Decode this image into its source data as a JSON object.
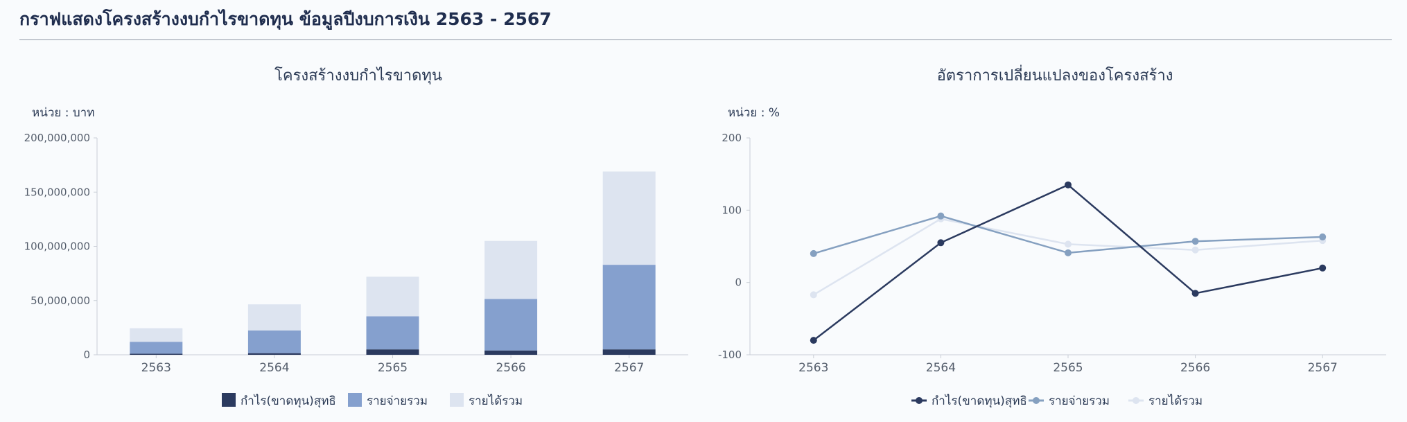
{
  "page": {
    "title": "กราฟแสดงโครงสร้างงบกำไรขาดทุน ข้อมูลปีงบการเงิน 2563 - 2567"
  },
  "chart_data": [
    {
      "type": "bar",
      "stacked": true,
      "title": "โครงสร้างงบกำไรขาดทุน",
      "unit_label": "หน่วย : บาท",
      "categories": [
        "2563",
        "2564",
        "2565",
        "2566",
        "2567"
      ],
      "series": [
        {
          "name": "กำไร(ขาดทุน)สุทธิ",
          "color": "#2b3a5f",
          "values": [
            1000000,
            1500000,
            5000000,
            4000000,
            5000000
          ]
        },
        {
          "name": "รายจ่ายรวม",
          "color": "#85a0ce",
          "values": [
            11000000,
            21000000,
            30500000,
            47500000,
            78000000
          ]
        },
        {
          "name": "รายได้รวม",
          "color": "#dde4f0",
          "values": [
            12500000,
            24000000,
            36500000,
            53500000,
            86000000
          ]
        }
      ],
      "ylim": [
        0,
        200000000
      ],
      "yticks": [
        "0",
        "50,000,000",
        "100,000,000",
        "150,000,000",
        "200,000,000"
      ],
      "ytick_values": [
        0,
        50000000,
        100000000,
        150000000,
        200000000
      ],
      "legend": "bottom",
      "grid": false
    },
    {
      "type": "line",
      "title": "อัตราการเปลี่ยนแปลงของโครงสร้าง",
      "unit_label": "หน่วย : %",
      "categories": [
        "2563",
        "2564",
        "2565",
        "2566",
        "2567"
      ],
      "series": [
        {
          "name": "กำไร(ขาดทุน)สุทธิ",
          "color": "#2b3a5f",
          "values": [
            -80,
            55,
            135,
            -15,
            20
          ]
        },
        {
          "name": "รายจ่ายรวม",
          "color": "#85a0c0",
          "values": [
            40,
            92,
            41,
            57,
            63
          ]
        },
        {
          "name": "รายได้รวม",
          "color": "#dde4f0",
          "values": [
            -17,
            88,
            53,
            45,
            58
          ]
        }
      ],
      "ylim": [
        -100,
        200
      ],
      "yticks": [
        "-100",
        "0",
        "100",
        "200"
      ],
      "ytick_values": [
        -100,
        0,
        100,
        200
      ],
      "legend": "bottom",
      "grid": false
    }
  ]
}
